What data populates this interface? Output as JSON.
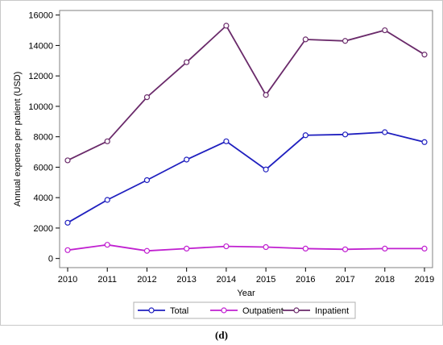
{
  "panel_label": "(d)",
  "chart_data": {
    "type": "line",
    "title": "",
    "xlabel": "Year",
    "ylabel": "Annual expense per patient (USD)",
    "x": [
      "2010",
      "2011",
      "2012",
      "2013",
      "2014",
      "2015",
      "2016",
      "2017",
      "2018",
      "2019"
    ],
    "xlim": [
      2010,
      2019
    ],
    "ylim": [
      -600,
      16300
    ],
    "yticks": [
      0,
      2000,
      4000,
      6000,
      8000,
      10000,
      12000,
      14000,
      16000
    ],
    "ytick_labels": [
      "0",
      "2000",
      "4000",
      "6000",
      "8000",
      "10000",
      "12000",
      "14000",
      "16000"
    ],
    "grid": false,
    "legend_position": "bottom",
    "series": [
      {
        "name": "Total",
        "color": "#1f1fbf",
        "marker": "open-circle",
        "values": [
          2350,
          3850,
          5150,
          6500,
          7700,
          5850,
          8100,
          8150,
          8300,
          7650
        ]
      },
      {
        "name": "Outpatient",
        "color": "#c020d0",
        "marker": "open-circle",
        "values": [
          550,
          900,
          500,
          650,
          800,
          750,
          650,
          600,
          650,
          650
        ]
      },
      {
        "name": "Inpatient",
        "color": "#6a2a6a",
        "marker": "open-circle",
        "values": [
          6450,
          7700,
          10600,
          12900,
          15300,
          10750,
          14400,
          14300,
          15000,
          13400
        ]
      }
    ]
  }
}
